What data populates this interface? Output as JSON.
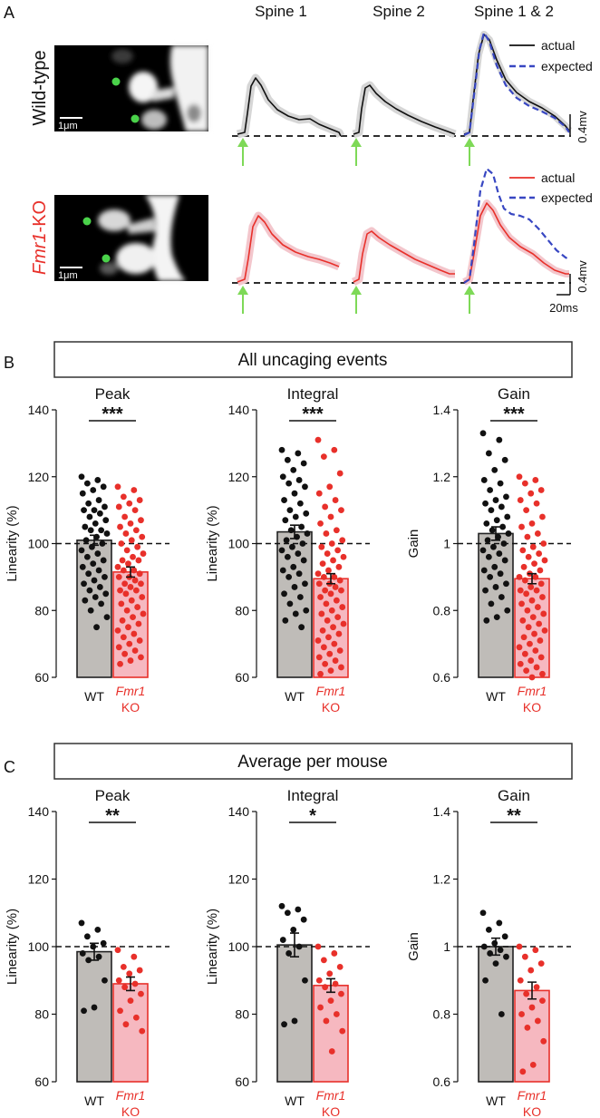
{
  "panel_labels": {
    "a": "A",
    "b": "B",
    "c": "C"
  },
  "traces": {
    "column_titles": [
      "Spine 1",
      "Spine 2",
      "Spine 1 & 2"
    ],
    "rows": [
      {
        "genotype": "Wild-type",
        "color": "#111111"
      },
      {
        "genotype_italic": "Fmr1",
        "genotype_suffix": "-KO",
        "color": "#e8302a"
      }
    ],
    "legend": {
      "actual": "actual",
      "expected": "expected"
    },
    "scalebar_amplitude": "0.4mv",
    "scalebar_time": "20ms",
    "image_scalebar": "1μm",
    "colors": {
      "wt": "#111111",
      "ko": "#e8302a",
      "expected": "#3847c2",
      "shade_wt": "#d6d6d6",
      "shade_ko": "#f3c6cc",
      "uncaging_arrow": "#7ed957"
    }
  },
  "section_titles": {
    "b": "All uncaging events",
    "c": "Average per mouse"
  },
  "x_labels": {
    "wt": "WT",
    "ko_italic": "Fmr1",
    "ko": "KO"
  },
  "chart_data": [
    {
      "type": "bar",
      "section": "B",
      "title": "Peak",
      "ylabel": "Linearity (%)",
      "yticks": [
        "60",
        "80",
        "100",
        "120",
        "140"
      ],
      "ylim": [
        60,
        140
      ],
      "reference": 100,
      "significance": "***",
      "categories": [
        "WT",
        "Fmr1 KO"
      ],
      "values": [
        101,
        91.5
      ],
      "errors": [
        1.5,
        1.5
      ],
      "points": [
        [
          120,
          119,
          118,
          117,
          116,
          115,
          113,
          112,
          111,
          110,
          110,
          109,
          108,
          107,
          106,
          105,
          104,
          104,
          103,
          102,
          101,
          100,
          99,
          98,
          97,
          96,
          95,
          94,
          93,
          92,
          91,
          90,
          89,
          88,
          87,
          86,
          85,
          84,
          83,
          82,
          80,
          78,
          75
        ],
        [
          117,
          116,
          114,
          113,
          112,
          111,
          110,
          108,
          107,
          106,
          105,
          104,
          103,
          102,
          101,
          100,
          99,
          98,
          97,
          96,
          95,
          95,
          94,
          93,
          92,
          92,
          91,
          90,
          90,
          89,
          88,
          88,
          87,
          86,
          86,
          85,
          84,
          83,
          82,
          81,
          80,
          79,
          78,
          77,
          76,
          75,
          74,
          73,
          72,
          71,
          70,
          69,
          68,
          67,
          66,
          65,
          64
        ]
      ]
    },
    {
      "type": "bar",
      "section": "B",
      "title": "Integral",
      "ylabel": "Linearity (%)",
      "yticks": [
        "60",
        "80",
        "100",
        "120",
        "140"
      ],
      "ylim": [
        60,
        140
      ],
      "reference": 100,
      "significance": "***",
      "categories": [
        "WT",
        "Fmr1 KO"
      ],
      "values": [
        103.5,
        89.5
      ],
      "errors": [
        2,
        1.5
      ],
      "points": [
        [
          128,
          127,
          125,
          124,
          122,
          120,
          119,
          118,
          117,
          115,
          113,
          112,
          110,
          109,
          108,
          107,
          105,
          104,
          103,
          102,
          101,
          100,
          99,
          98,
          97,
          96,
          95,
          93,
          92,
          91,
          90,
          88,
          87,
          85,
          84,
          82,
          80,
          79,
          77,
          75
        ],
        [
          131,
          128,
          126,
          121,
          117,
          115,
          113,
          111,
          110,
          108,
          106,
          104,
          103,
          101,
          100,
          99,
          98,
          97,
          96,
          95,
          94,
          93,
          92,
          91,
          90,
          90,
          89,
          88,
          88,
          87,
          86,
          86,
          85,
          84,
          83,
          82,
          81,
          80,
          79,
          78,
          77,
          76,
          75,
          74,
          73,
          72,
          71,
          70,
          69,
          68,
          67,
          66,
          65,
          64,
          63,
          62,
          61
        ]
      ]
    },
    {
      "type": "bar",
      "section": "B",
      "title": "Gain",
      "ylabel": "Gain",
      "yticks": [
        "0.6",
        "0.8",
        "1",
        "1.2",
        "1.4"
      ],
      "ylim": [
        0.6,
        1.4
      ],
      "reference": 1,
      "significance": "***",
      "categories": [
        "WT",
        "Fmr1 KO"
      ],
      "values": [
        1.03,
        0.895
      ],
      "errors": [
        0.02,
        0.015
      ],
      "points": [
        [
          1.33,
          1.31,
          1.27,
          1.25,
          1.22,
          1.19,
          1.18,
          1.16,
          1.14,
          1.13,
          1.12,
          1.11,
          1.1,
          1.08,
          1.07,
          1.06,
          1.05,
          1.04,
          1.03,
          1.02,
          1.01,
          1,
          0.99,
          0.98,
          0.97,
          0.96,
          0.95,
          0.93,
          0.92,
          0.91,
          0.9,
          0.88,
          0.87,
          0.86,
          0.84,
          0.82,
          0.8,
          0.78,
          0.77
        ],
        [
          1.2,
          1.19,
          1.18,
          1.16,
          1.15,
          1.13,
          1.12,
          1.1,
          1.08,
          1.06,
          1.05,
          1.03,
          1.02,
          1,
          0.99,
          0.98,
          0.97,
          0.96,
          0.95,
          0.94,
          0.93,
          0.92,
          0.91,
          0.9,
          0.9,
          0.89,
          0.88,
          0.87,
          0.86,
          0.86,
          0.85,
          0.84,
          0.83,
          0.82,
          0.81,
          0.8,
          0.79,
          0.78,
          0.77,
          0.76,
          0.75,
          0.74,
          0.73,
          0.72,
          0.71,
          0.7,
          0.69,
          0.68,
          0.67,
          0.66,
          0.65,
          0.64,
          0.63,
          0.62,
          0.61,
          0.6
        ]
      ]
    },
    {
      "type": "bar",
      "section": "C",
      "title": "Peak",
      "ylabel": "Linearity (%)",
      "yticks": [
        "60",
        "80",
        "100",
        "120",
        "140"
      ],
      "ylim": [
        60,
        140
      ],
      "reference": 100,
      "significance": "**",
      "categories": [
        "WT",
        "Fmr1 KO"
      ],
      "values": [
        98.5,
        89
      ],
      "errors": [
        2.5,
        2
      ],
      "points": [
        [
          107,
          105,
          103,
          101,
          100,
          98,
          97,
          96,
          90,
          82,
          81
        ],
        [
          99,
          97,
          94,
          93,
          92,
          90,
          89,
          88,
          86,
          84,
          81,
          79,
          77,
          75
        ]
      ]
    },
    {
      "type": "bar",
      "section": "C",
      "title": "Integral",
      "ylabel": "Linearity (%)",
      "yticks": [
        "60",
        "80",
        "100",
        "120",
        "140"
      ],
      "ylim": [
        60,
        140
      ],
      "reference": 100,
      "significance": "*",
      "categories": [
        "WT",
        "Fmr1 KO"
      ],
      "values": [
        100.5,
        88.5
      ],
      "errors": [
        3.5,
        2
      ],
      "points": [
        [
          112,
          111,
          110,
          108,
          105,
          102,
          100,
          98,
          90,
          78,
          77
        ],
        [
          100,
          98,
          96,
          94,
          92,
          90,
          89,
          88,
          86,
          84,
          82,
          80,
          78,
          75,
          69
        ]
      ]
    },
    {
      "type": "bar",
      "section": "C",
      "title": "Gain",
      "ylabel": "Gain",
      "yticks": [
        "0.6",
        "0.8",
        "1",
        "1.2",
        "1.4"
      ],
      "ylim": [
        0.6,
        1.4
      ],
      "reference": 1,
      "significance": "**",
      "categories": [
        "WT",
        "Fmr1 KO"
      ],
      "values": [
        1.0,
        0.87
      ],
      "errors": [
        0.025,
        0.025
      ],
      "points": [
        [
          1.1,
          1.07,
          1.05,
          1.03,
          1.01,
          1.0,
          0.99,
          0.98,
          0.97,
          0.95,
          0.9,
          0.8
        ],
        [
          1.0,
          0.99,
          0.97,
          0.95,
          0.93,
          0.9,
          0.88,
          0.86,
          0.84,
          0.82,
          0.8,
          0.78,
          0.76,
          0.72,
          0.65,
          0.63
        ]
      ]
    }
  ]
}
